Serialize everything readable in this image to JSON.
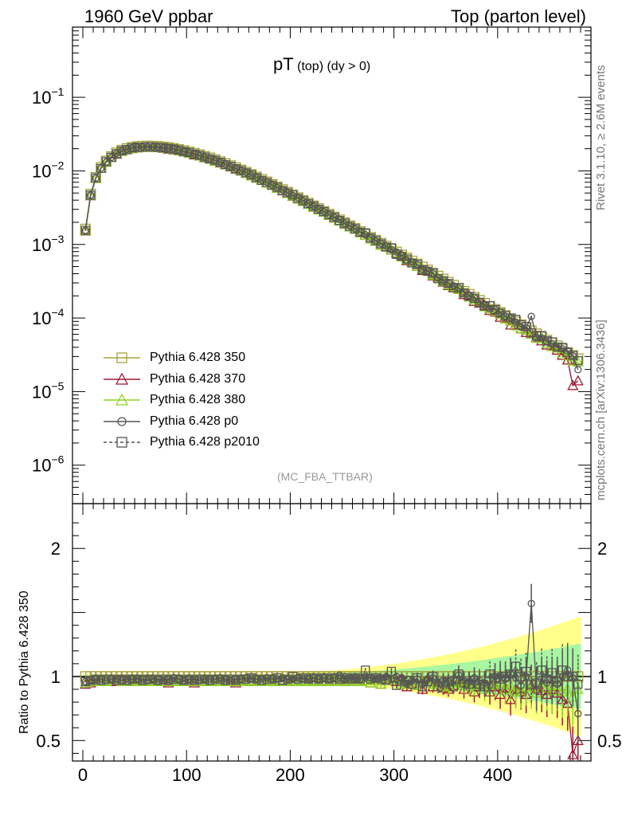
{
  "header": {
    "left": "1960 GeV ppbar",
    "right": "Top (parton level)"
  },
  "side_texts": {
    "rivet": "Rivet 3.1.10, ≥ 2.6M events",
    "mcplots": "mcplots.cern.ch [arXiv:1306.3436]"
  },
  "plot_title": {
    "main": "pT",
    "sub": " (top) (dy > 0)"
  },
  "mc_label": "(MC_FBA_TTBAR)",
  "ratio_ylabel": "Ratio to Pythia 6.428 350",
  "legend": [
    {
      "label": "Pythia 6.428 350",
      "color": "#a5a23a",
      "marker": "square-icon",
      "dash": false
    },
    {
      "label": "Pythia 6.428 370",
      "color": "#9c1b33",
      "marker": "triangle-icon",
      "dash": false
    },
    {
      "label": "Pythia 6.428 380",
      "color": "#8cd620",
      "marker": "triangle-icon",
      "dash": false
    },
    {
      "label": "Pythia 6.428 p0",
      "color": "#555555",
      "marker": "circle-icon",
      "dash": false
    },
    {
      "label": "Pythia 6.428 p2010",
      "color": "#555555",
      "marker": "square-icon",
      "dash": true
    }
  ],
  "chart_data": [
    {
      "type": "line",
      "panel": "main",
      "xlim": [
        -10,
        490
      ],
      "ylim": [
        3e-07,
        0.9
      ],
      "log_y": true,
      "ytick_labels": [
        {
          "base": "10",
          "exp": "−6",
          "value": 1e-06
        },
        {
          "base": "10",
          "exp": "−5",
          "value": 1e-05
        },
        {
          "base": "10",
          "exp": "−4",
          "value": 0.0001
        },
        {
          "base": "10",
          "exp": "−3",
          "value": 0.001
        },
        {
          "base": "10",
          "exp": "−2",
          "value": 0.01
        },
        {
          "base": "10",
          "exp": "−1",
          "value": 0.1
        }
      ],
      "x": [
        2.5,
        7.5,
        12.5,
        17.5,
        22.5,
        27.5,
        32.5,
        37.5,
        42.5,
        47.5,
        52.5,
        57.5,
        62.5,
        67.5,
        72.5,
        77.5,
        82.5,
        87.5,
        92.5,
        97.5,
        102.5,
        107.5,
        112.5,
        117.5,
        122.5,
        127.5,
        132.5,
        137.5,
        142.5,
        147.5,
        152.5,
        157.5,
        162.5,
        167.5,
        172.5,
        177.5,
        182.5,
        187.5,
        192.5,
        197.5,
        202.5,
        207.5,
        212.5,
        217.5,
        222.5,
        227.5,
        232.5,
        237.5,
        242.5,
        247.5,
        252.5,
        257.5,
        262.5,
        267.5,
        272.5,
        277.5,
        282.5,
        287.5,
        292.5,
        297.5,
        302.5,
        307.5,
        312.5,
        317.5,
        322.5,
        327.5,
        332.5,
        337.5,
        342.5,
        347.5,
        352.5,
        357.5,
        362.5,
        367.5,
        372.5,
        377.5,
        382.5,
        387.5,
        392.5,
        397.5,
        402.5,
        407.5,
        412.5,
        417.5,
        422.5,
        427.5,
        432.5,
        437.5,
        442.5,
        447.5,
        452.5,
        457.5,
        462.5,
        467.5,
        472.5,
        477.5
      ],
      "series_reference": {
        "name": "Pythia 6.428 350",
        "values": [
          0.00162,
          0.00483,
          0.00818,
          0.01114,
          0.01363,
          0.01561,
          0.01764,
          0.01909,
          0.02014,
          0.02088,
          0.0214,
          0.02168,
          0.02175,
          0.02165,
          0.0215,
          0.02111,
          0.02076,
          0.02016,
          0.01951,
          0.01886,
          0.01807,
          0.01737,
          0.01662,
          0.01576,
          0.01499,
          0.01417,
          0.01333,
          0.01254,
          0.01177,
          0.01104,
          0.01028,
          0.00961,
          0.00893,
          0.00828,
          0.00766,
          0.00709,
          0.00655,
          0.00604,
          0.00557,
          0.00513,
          0.00471,
          0.00433,
          0.00397,
          0.00365,
          0.00335,
          0.00307,
          0.00282,
          0.00258,
          0.00236,
          0.00216,
          0.00197,
          0.0018,
          0.00165,
          0.0015,
          0.00137,
          0.00125,
          0.00114,
          0.00104,
          0.000951,
          0.000866,
          0.000789,
          0.000719,
          0.000655,
          0.000596,
          0.000542,
          0.000493,
          0.000449,
          0.000408,
          0.000372,
          0.000338,
          0.000307,
          0.000279,
          0.000254,
          0.000231,
          0.00021,
          0.000191,
          0.000174,
          0.000158,
          0.000144,
          0.000131,
          0.000119,
          0.000108,
          9.8e-05,
          8.9e-05,
          8.1e-05,
          7.4e-05,
          6.7e-05,
          6.1e-05,
          5.5e-05,
          5e-05,
          4.6e-05,
          4.2e-05,
          3.8e-05,
          3.4e-05,
          3.1e-05,
          2.8e-05
        ]
      }
    },
    {
      "type": "line",
      "panel": "ratio",
      "xlim": [
        -10,
        490
      ],
      "ylim": [
        0.34,
        2.35
      ],
      "ylabel": "Ratio to Pythia 6.428 350",
      "xticks": [
        0,
        100,
        200,
        300,
        400
      ],
      "yticks": [
        0.5,
        1,
        2
      ],
      "ytick_labels": [
        "0.5",
        "1",
        "2"
      ],
      "x": [
        2.5,
        7.5,
        12.5,
        17.5,
        22.5,
        27.5,
        32.5,
        37.5,
        42.5,
        47.5,
        52.5,
        57.5,
        62.5,
        67.5,
        72.5,
        77.5,
        82.5,
        87.5,
        92.5,
        97.5,
        102.5,
        107.5,
        112.5,
        117.5,
        122.5,
        127.5,
        132.5,
        137.5,
        142.5,
        147.5,
        152.5,
        157.5,
        162.5,
        167.5,
        172.5,
        177.5,
        182.5,
        187.5,
        192.5,
        197.5,
        202.5,
        207.5,
        212.5,
        217.5,
        222.5,
        227.5,
        232.5,
        237.5,
        242.5,
        247.5,
        252.5,
        257.5,
        262.5,
        267.5,
        272.5,
        277.5,
        282.5,
        287.5,
        292.5,
        297.5,
        302.5,
        307.5,
        312.5,
        317.5,
        322.5,
        327.5,
        332.5,
        337.5,
        342.5,
        347.5,
        352.5,
        357.5,
        362.5,
        367.5,
        372.5,
        377.5,
        382.5,
        387.5,
        392.5,
        397.5,
        402.5,
        407.5,
        412.5,
        417.5,
        422.5,
        427.5,
        432.5,
        437.5,
        442.5,
        447.5,
        452.5,
        457.5,
        462.5,
        467.5,
        472.5,
        477.5
      ],
      "series": [
        {
          "name": "Pythia 6.428 350",
          "values": [
            1,
            1,
            1,
            1,
            1,
            1,
            1,
            1,
            1,
            1,
            1,
            1,
            1,
            1,
            1,
            1,
            1,
            1,
            1,
            1,
            1,
            1,
            1,
            1,
            1,
            1,
            1,
            1,
            1,
            1,
            1,
            1,
            1,
            1,
            1,
            1,
            1,
            1,
            1,
            1,
            1,
            1,
            1,
            1,
            1,
            1,
            1,
            1,
            1,
            1,
            1,
            1,
            1,
            1,
            1,
            1,
            1,
            1,
            1,
            1,
            1,
            1,
            1,
            1,
            1,
            1,
            1,
            1,
            1,
            1,
            1,
            1,
            1,
            1,
            1,
            1,
            1,
            1,
            1,
            1,
            1,
            1,
            1,
            1,
            1,
            1,
            1,
            1,
            1,
            1,
            1,
            1,
            1,
            1,
            1,
            1
          ]
        },
        {
          "name": "Pythia 6.428 370",
          "values": [
            0.94,
            0.95,
            0.97,
            0.97,
            0.96,
            0.97,
            0.96,
            0.97,
            0.96,
            0.96,
            0.96,
            0.96,
            0.97,
            0.96,
            0.96,
            0.96,
            0.95,
            0.96,
            0.96,
            0.96,
            0.96,
            0.95,
            0.96,
            0.96,
            0.96,
            0.96,
            0.96,
            0.97,
            0.96,
            0.95,
            0.97,
            0.96,
            0.96,
            0.96,
            0.97,
            0.96,
            0.97,
            0.96,
            0.96,
            0.97,
            0.96,
            0.96,
            0.97,
            0.97,
            0.96,
            0.96,
            0.97,
            0.96,
            0.97,
            0.97,
            0.96,
            0.96,
            0.98,
            0.96,
            0.97,
            0.95,
            0.97,
            0.94,
            0.98,
            0.97,
            0.96,
            0.98,
            0.92,
            0.95,
            0.93,
            0.9,
            0.98,
            0.92,
            0.95,
            0.91,
            0.9,
            0.93,
            0.97,
            0.9,
            0.96,
            0.88,
            0.92,
            0.94,
            0.88,
            0.92,
            0.86,
            0.91,
            0.82,
            0.9,
            0.88,
            0.86,
            0.93,
            0.9,
            0.89,
            0.86,
            0.9,
            0.87,
            0.82,
            0.79,
            0.39,
            0.5
          ]
        },
        {
          "name": "Pythia 6.428 380",
          "values": [
            0.95,
            0.96,
            0.96,
            0.97,
            0.96,
            0.97,
            0.97,
            0.96,
            0.97,
            0.96,
            0.97,
            0.96,
            0.96,
            0.97,
            0.96,
            0.97,
            0.96,
            0.97,
            0.96,
            0.97,
            0.96,
            0.97,
            0.96,
            0.97,
            0.96,
            0.96,
            0.97,
            0.96,
            0.97,
            0.96,
            0.97,
            0.96,
            0.97,
            0.96,
            0.97,
            0.96,
            0.97,
            0.96,
            0.97,
            0.96,
            0.97,
            0.96,
            0.97,
            0.96,
            0.97,
            0.96,
            0.97,
            0.96,
            0.97,
            0.96,
            0.97,
            0.96,
            0.97,
            0.96,
            0.97,
            0.95,
            0.97,
            0.94,
            0.97,
            0.97,
            0.98,
            0.94,
            0.95,
            0.96,
            0.93,
            0.95,
            0.96,
            0.94,
            0.95,
            0.93,
            0.92,
            0.95,
            0.96,
            0.94,
            0.92,
            0.93,
            0.95,
            0.9,
            0.93,
            0.94,
            0.95,
            0.9,
            0.93,
            0.88,
            0.89,
            0.92,
            0.9,
            0.87,
            0.95,
            0.91,
            0.89,
            0.93,
            0.88,
            0.9,
            0.84,
            0.9
          ]
        },
        {
          "name": "Pythia 6.428 p0",
          "values": [
            0.96,
            0.97,
            0.98,
            0.98,
            0.97,
            0.98,
            0.98,
            0.97,
            0.98,
            0.98,
            0.98,
            0.98,
            0.97,
            0.98,
            0.98,
            0.97,
            0.98,
            0.99,
            0.98,
            0.97,
            0.98,
            0.98,
            0.97,
            0.98,
            0.98,
            0.98,
            0.99,
            0.98,
            0.97,
            0.98,
            0.98,
            0.99,
            0.98,
            0.98,
            0.98,
            0.99,
            0.98,
            0.98,
            0.99,
            0.98,
            0.98,
            0.99,
            0.98,
            0.98,
            0.99,
            0.98,
            0.99,
            0.98,
            0.99,
            1.01,
            0.98,
            0.99,
            0.99,
            0.98,
            0.99,
            0.99,
            0.98,
            0.99,
            1.0,
            0.98,
            1.0,
            0.99,
            0.94,
            0.97,
            0.98,
            0.94,
            0.98,
            0.99,
            0.95,
            0.97,
            0.96,
            0.98,
            1.01,
            0.97,
            0.96,
            0.99,
            0.97,
            0.95,
            0.93,
            1.0,
            1.01,
            0.98,
            1.02,
            0.99,
            0.93,
            1.0,
            1.57,
            0.89,
            0.98,
            0.95,
            0.97,
            0.94,
            1.0,
            1.05,
            0.99,
            0.71
          ]
        },
        {
          "name": "Pythia 6.428 p2010",
          "values": [
            0.96,
            0.97,
            0.98,
            0.97,
            0.98,
            0.98,
            0.97,
            0.98,
            0.97,
            0.98,
            0.98,
            0.97,
            0.98,
            0.98,
            0.97,
            0.98,
            0.97,
            0.98,
            0.98,
            0.97,
            0.98,
            0.97,
            0.98,
            0.98,
            0.97,
            0.98,
            0.98,
            0.97,
            0.98,
            0.97,
            0.98,
            0.98,
            0.99,
            0.98,
            0.97,
            0.98,
            0.98,
            0.99,
            0.97,
            0.98,
            1.0,
            0.98,
            0.99,
            0.98,
            0.99,
            0.98,
            0.99,
            0.98,
            0.99,
            0.98,
            0.99,
            0.98,
            0.99,
            0.98,
            1.05,
            0.98,
            0.99,
            0.98,
            0.97,
            1.04,
            0.93,
            0.96,
            0.97,
            0.94,
            0.99,
            0.92,
            0.96,
            1.0,
            0.92,
            0.95,
            0.96,
            0.92,
            1.02,
            0.95,
            0.94,
            0.97,
            0.94,
            0.92,
            1.02,
            0.99,
            0.98,
            1.0,
            1.02,
            1.08,
            1.0,
            1.04,
            0.94,
            0.95,
            1.05,
            0.98,
            1.03,
            0.96,
            1.05,
            1.0,
            1.0,
            0.94
          ]
        }
      ]
    }
  ]
}
